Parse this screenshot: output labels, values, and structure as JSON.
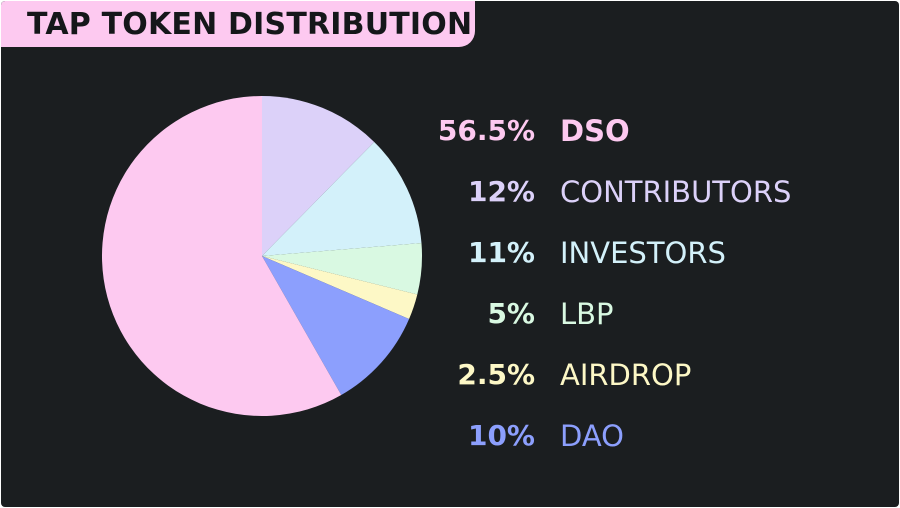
{
  "title": "TAP TOKEN DISTRIBUTION",
  "colors": {
    "background": "#1b1e20",
    "title_tab": "#fdc9f0",
    "title_text": "#15171a"
  },
  "chart_data": {
    "type": "pie",
    "title": "TAP TOKEN DISTRIBUTION",
    "slices": [
      {
        "label": "DSO",
        "percent_label": "56.5%",
        "value": 56.5,
        "color": "#fdc9f0"
      },
      {
        "label": "CONTRIBUTORS",
        "percent_label": "12%",
        "value": 12,
        "color": "#dcd1f9"
      },
      {
        "label": "INVESTORS",
        "percent_label": "11%",
        "value": 11,
        "color": "#d3f1fa"
      },
      {
        "label": "LBP",
        "percent_label": "5%",
        "value": 5,
        "color": "#d9f9e2"
      },
      {
        "label": "AIRDROP",
        "percent_label": "2.5%",
        "value": 2.5,
        "color": "#fdf8c6"
      },
      {
        "label": "DAO",
        "percent_label": "10%",
        "value": 10,
        "color": "#8c9ffd"
      }
    ],
    "legend_placement": "right"
  }
}
